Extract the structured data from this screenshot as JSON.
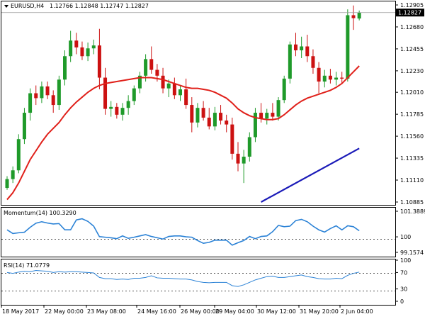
{
  "header": {
    "symbol": "EURUSD,H4",
    "quote": "1.12766 1.12848 1.12747 1.12827",
    "current_price": "1.12827"
  },
  "main_pane": {
    "y_ticks": [
      "1.12905",
      "1.12680",
      "1.12455",
      "1.12230",
      "1.12010",
      "1.11785",
      "1.11560",
      "1.11335",
      "1.11110",
      "1.10885"
    ]
  },
  "momentum_pane": {
    "title": "Momentum(14) 100.3290",
    "y_ticks": [
      "101.3889",
      "100",
      "99.1574"
    ]
  },
  "rsi_pane": {
    "title": "RSI(14) 71.0779",
    "y_ticks": [
      "100",
      "70",
      "30",
      "0"
    ]
  },
  "x_labels": [
    "18 May 2017",
    "22 May 00:00",
    "23 May 08:00",
    "24 May 16:00",
    "26 May 00:00",
    "29 May 04:00",
    "30 May 12:00",
    "31 May 20:00",
    "2 Jun 04:00"
  ],
  "colors": {
    "bull": "#1f9a2a",
    "bear": "#cc1111",
    "ma": "#e0201a",
    "trend": "#1a1ab8",
    "indicator": "#2b82d6",
    "grid": "#000000"
  },
  "chart_data": [
    {
      "type": "candlestick",
      "title": "EURUSD,H4",
      "ylim": [
        1.10885,
        1.12905
      ],
      "ohlc": [
        [
          1.1103,
          1.1115,
          1.1101,
          1.1112
        ],
        [
          1.1112,
          1.1125,
          1.1108,
          1.1121
        ],
        [
          1.1121,
          1.1158,
          1.1118,
          1.1153
        ],
        [
          1.1153,
          1.1185,
          1.1148,
          1.118
        ],
        [
          1.118,
          1.1205,
          1.1172,
          1.12
        ],
        [
          1.12,
          1.1208,
          1.1188,
          1.1195
        ],
        [
          1.1195,
          1.1212,
          1.119,
          1.1207
        ],
        [
          1.1207,
          1.1212,
          1.1194,
          1.1198
        ],
        [
          1.1198,
          1.1203,
          1.118,
          1.1188
        ],
        [
          1.1188,
          1.1218,
          1.1183,
          1.1214
        ],
        [
          1.1214,
          1.1244,
          1.1208,
          1.1238
        ],
        [
          1.1238,
          1.1264,
          1.1232,
          1.1254
        ],
        [
          1.1254,
          1.1262,
          1.124,
          1.1247
        ],
        [
          1.1247,
          1.1253,
          1.1234,
          1.1238
        ],
        [
          1.1238,
          1.1252,
          1.1233,
          1.1246
        ],
        [
          1.1246,
          1.1255,
          1.124,
          1.1249
        ],
        [
          1.1249,
          1.1266,
          1.1204,
          1.1216
        ],
        [
          1.1216,
          1.1226,
          1.1178,
          1.1184
        ],
        [
          1.1184,
          1.1192,
          1.1176,
          1.1186
        ],
        [
          1.1186,
          1.119,
          1.1174,
          1.1178
        ],
        [
          1.1178,
          1.119,
          1.1172,
          1.1185
        ],
        [
          1.1185,
          1.1198,
          1.1178,
          1.1192
        ],
        [
          1.1192,
          1.1208,
          1.1188,
          1.1205
        ],
        [
          1.1205,
          1.1222,
          1.12,
          1.1218
        ],
        [
          1.1218,
          1.124,
          1.1212,
          1.1235
        ],
        [
          1.1235,
          1.1248,
          1.122,
          1.1224
        ],
        [
          1.1224,
          1.123,
          1.1212,
          1.1218
        ],
        [
          1.1218,
          1.1226,
          1.12,
          1.1205
        ],
        [
          1.1205,
          1.1214,
          1.1196,
          1.121
        ],
        [
          1.121,
          1.1216,
          1.1194,
          1.1198
        ],
        [
          1.1198,
          1.1208,
          1.1192,
          1.1204
        ],
        [
          1.1204,
          1.1215,
          1.1184,
          1.1188
        ],
        [
          1.1188,
          1.1196,
          1.116,
          1.117
        ],
        [
          1.117,
          1.119,
          1.1165,
          1.1185
        ],
        [
          1.1185,
          1.1192,
          1.1172,
          1.1175
        ],
        [
          1.1175,
          1.1185,
          1.1163,
          1.1166
        ],
        [
          1.1166,
          1.1186,
          1.1162,
          1.118
        ],
        [
          1.118,
          1.1188,
          1.1168,
          1.1172
        ],
        [
          1.1172,
          1.1178,
          1.116,
          1.1168
        ],
        [
          1.1168,
          1.1175,
          1.1132,
          1.1138
        ],
        [
          1.1138,
          1.115,
          1.112,
          1.1128
        ],
        [
          1.1128,
          1.1142,
          1.1108,
          1.1135
        ],
        [
          1.1135,
          1.116,
          1.113,
          1.1155
        ],
        [
          1.1155,
          1.1185,
          1.115,
          1.118
        ],
        [
          1.118,
          1.119,
          1.117,
          1.1174
        ],
        [
          1.1174,
          1.1184,
          1.1168,
          1.118
        ],
        [
          1.118,
          1.119,
          1.1172,
          1.1176
        ],
        [
          1.1176,
          1.1196,
          1.1172,
          1.1193
        ],
        [
          1.1193,
          1.1218,
          1.119,
          1.1215
        ],
        [
          1.1215,
          1.1253,
          1.121,
          1.125
        ],
        [
          1.125,
          1.1262,
          1.1238,
          1.1244
        ],
        [
          1.1244,
          1.1258,
          1.1236,
          1.1248
        ],
        [
          1.1248,
          1.126,
          1.1232,
          1.1238
        ],
        [
          1.1238,
          1.1245,
          1.122,
          1.1226
        ],
        [
          1.1226,
          1.1232,
          1.12,
          1.1212
        ],
        [
          1.1212,
          1.1224,
          1.1206,
          1.1218
        ],
        [
          1.1218,
          1.1225,
          1.121,
          1.1214
        ],
        [
          1.1214,
          1.1222,
          1.1208,
          1.1216
        ],
        [
          1.1216,
          1.1222,
          1.121,
          1.1215
        ],
        [
          1.1215,
          1.1286,
          1.1212,
          1.128
        ],
        [
          1.128,
          1.129,
          1.1265,
          1.1277
        ],
        [
          1.12766,
          1.12848,
          1.12747,
          1.12827
        ]
      ]
    },
    {
      "type": "line",
      "name": "moving-average",
      "ylim": [
        1.10885,
        1.12905
      ],
      "values": [
        1.1091,
        1.1098,
        1.1108,
        1.112,
        1.1132,
        1.1141,
        1.115,
        1.1158,
        1.1164,
        1.117,
        1.1178,
        1.1185,
        1.1191,
        1.1196,
        1.1201,
        1.1205,
        1.1208,
        1.121,
        1.1211,
        1.1212,
        1.1213,
        1.1214,
        1.1215,
        1.1216,
        1.1216,
        1.1216,
        1.1215,
        1.1214,
        1.1212,
        1.121,
        1.1208,
        1.1206,
        1.1205,
        1.1205,
        1.1204,
        1.1203,
        1.1201,
        1.1198,
        1.1195,
        1.119,
        1.1184,
        1.118,
        1.1177,
        1.1175,
        1.1174,
        1.1173,
        1.1173,
        1.1174,
        1.1178,
        1.1183,
        1.1188,
        1.1192,
        1.1195,
        1.1197,
        1.1199,
        1.1201,
        1.1203,
        1.1206,
        1.121,
        1.1216,
        1.1222,
        1.1228
      ]
    },
    {
      "type": "line",
      "name": "trend-line",
      "ylim": [
        1.10885,
        1.12905
      ],
      "points": [
        [
          44,
          1.10885
        ],
        [
          61,
          1.11435
        ]
      ]
    },
    {
      "type": "line",
      "title": "Momentum(14) 100.3290",
      "ylim": [
        99.1574,
        101.3889
      ],
      "values": [
        100.38,
        100.18,
        100.22,
        100.25,
        100.52,
        100.74,
        100.82,
        100.75,
        100.7,
        100.72,
        100.38,
        100.38,
        100.92,
        100.98,
        100.84,
        100.58,
        100.01,
        99.98,
        99.95,
        99.9,
        100.05,
        99.92,
        99.98,
        100.05,
        100.12,
        100.02,
        99.95,
        99.88,
        100.02,
        100.05,
        100.05,
        100.0,
        99.98,
        99.8,
        99.65,
        99.7,
        99.82,
        99.82,
        99.82,
        99.55,
        99.68,
        99.8,
        100.02,
        99.9,
        100.02,
        100.05,
        100.28,
        100.62,
        100.55,
        100.58,
        100.88,
        100.95,
        100.82,
        100.58,
        100.38,
        100.26,
        100.45,
        100.6,
        100.38,
        100.6,
        100.55,
        100.33
      ]
    },
    {
      "type": "line",
      "title": "RSI(14) 71.0779",
      "ylim": [
        0,
        100
      ],
      "values": [
        70,
        68,
        71,
        73,
        72,
        75,
        74,
        73,
        70,
        72,
        71,
        72,
        72,
        71,
        70,
        69,
        58,
        55,
        55,
        53,
        54,
        53,
        56,
        56,
        58,
        62,
        57,
        56,
        56,
        55,
        54,
        54,
        52,
        48,
        46,
        45,
        46,
        46,
        46,
        38,
        36,
        40,
        46,
        52,
        56,
        60,
        61,
        58,
        58,
        60,
        62,
        64,
        60,
        58,
        55,
        54,
        54,
        56,
        55,
        63,
        68,
        71
      ]
    }
  ]
}
